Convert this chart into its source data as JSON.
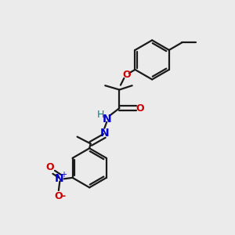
{
  "bg_color": "#ebebeb",
  "bond_color": "#1a1a1a",
  "bond_width": 1.6,
  "O_color": "#cc0000",
  "N_color": "#0000cc",
  "H_color": "#008080",
  "figsize": [
    3.0,
    3.0
  ],
  "dpi": 100,
  "xlim": [
    0,
    10
  ],
  "ylim": [
    0,
    10
  ]
}
